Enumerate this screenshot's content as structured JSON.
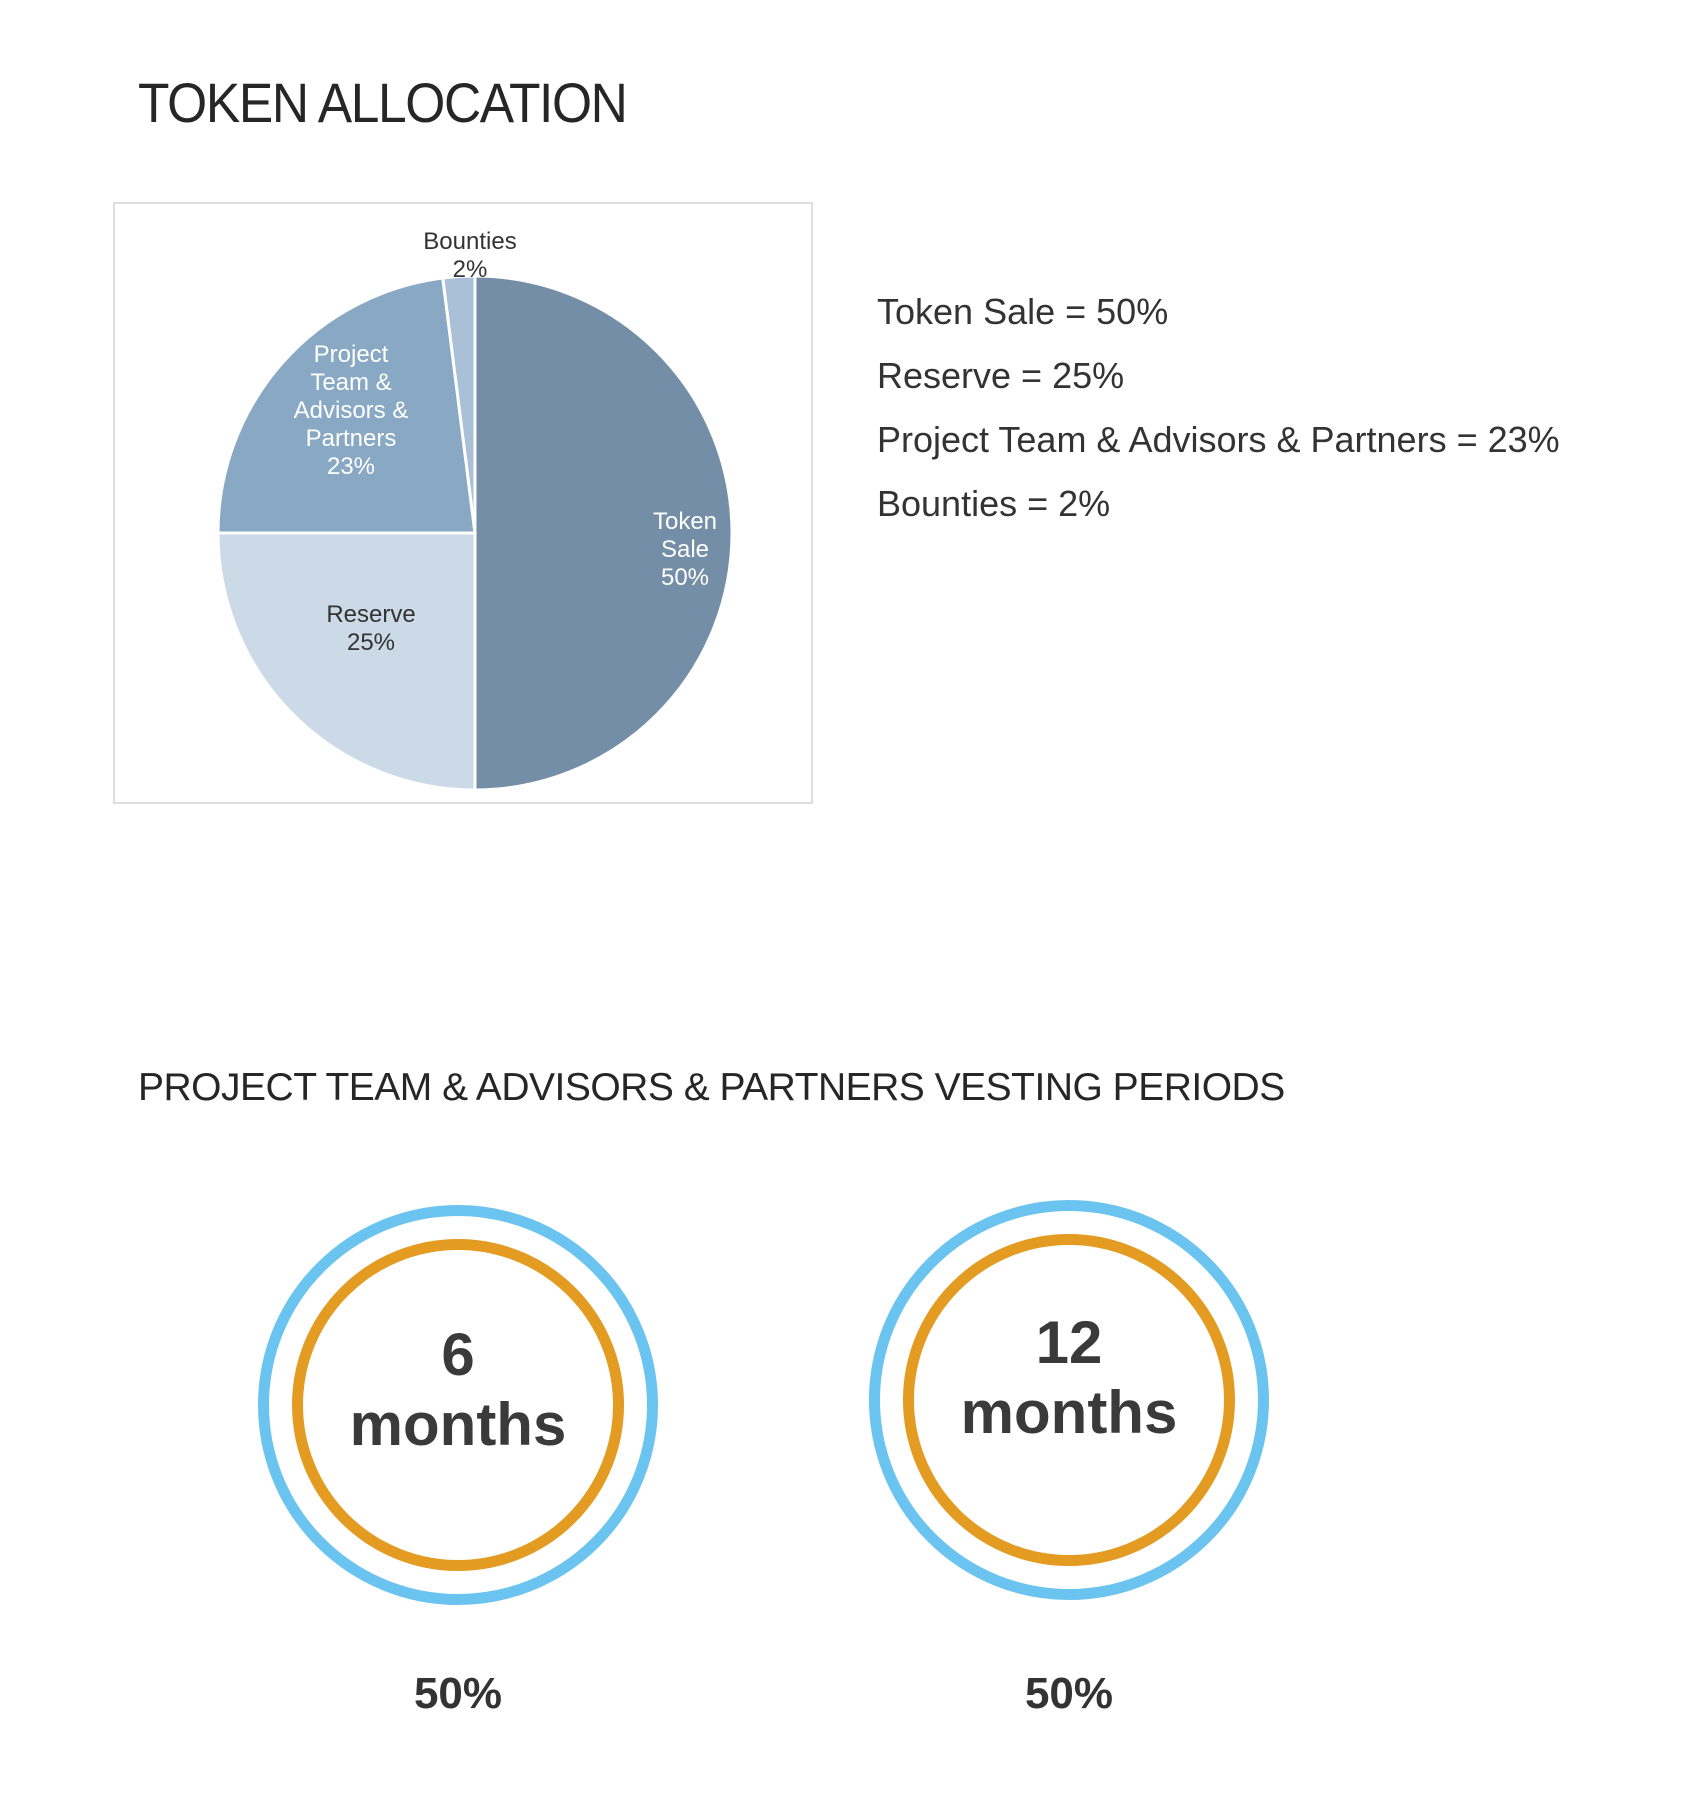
{
  "title": "TOKEN ALLOCATION",
  "chart_data": {
    "type": "pie",
    "title": "",
    "slices": [
      {
        "name": "Token Sale",
        "value": 50,
        "label_lines": [
          "Token",
          "Sale",
          "50%"
        ],
        "color": "#738ea6",
        "label_color": "#ffffff"
      },
      {
        "name": "Reserve",
        "value": 25,
        "label_lines": [
          "Reserve",
          "25%"
        ],
        "color": "#ccdae7",
        "label_color": "#333333"
      },
      {
        "name": "Project Team & Advisors & Partners",
        "value": 23,
        "label_lines": [
          "Project",
          "Team &",
          "Advisors &",
          "Partners",
          "23%"
        ],
        "color": "#89a8c4",
        "label_color": "#ffffff"
      },
      {
        "name": "Bounties",
        "value": 2,
        "label_lines": [
          "Bounties",
          "2%"
        ],
        "color": "#a9c0d6",
        "label_color": "#333333"
      }
    ]
  },
  "legend": [
    "Token Sale = 50%",
    "Reserve = 25%",
    "Project Team & Advisors & Partners = 23%",
    "Bounties = 2%"
  ],
  "vesting": {
    "title": "PROJECT TEAM & ADVISORS & PARTNERS VESTING PERIODS",
    "periods": [
      {
        "number": "6",
        "unit": "months",
        "share": "50%"
      },
      {
        "number": "12",
        "unit": "months",
        "share": "50%"
      }
    ],
    "colors": {
      "outer_ring": "#6ac4ef",
      "inner_ring": "#e39b22"
    }
  }
}
